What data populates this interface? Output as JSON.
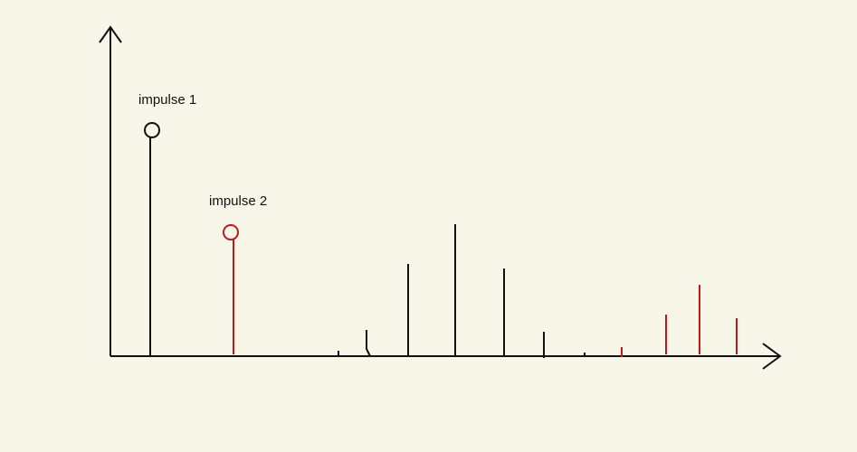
{
  "labels": {
    "impulse1": "impulse 1",
    "impulse2": "impulse 2"
  },
  "colors": {
    "background": "#f8f5e9",
    "black": "#111111",
    "red": "#c0191c"
  },
  "icons": {
    "y_axis_arrow": "arrowhead-up-icon",
    "x_axis_arrow": "arrowhead-right-icon",
    "impulse1_marker": "circle-marker-icon",
    "impulse2_marker": "circle-marker-icon"
  }
}
